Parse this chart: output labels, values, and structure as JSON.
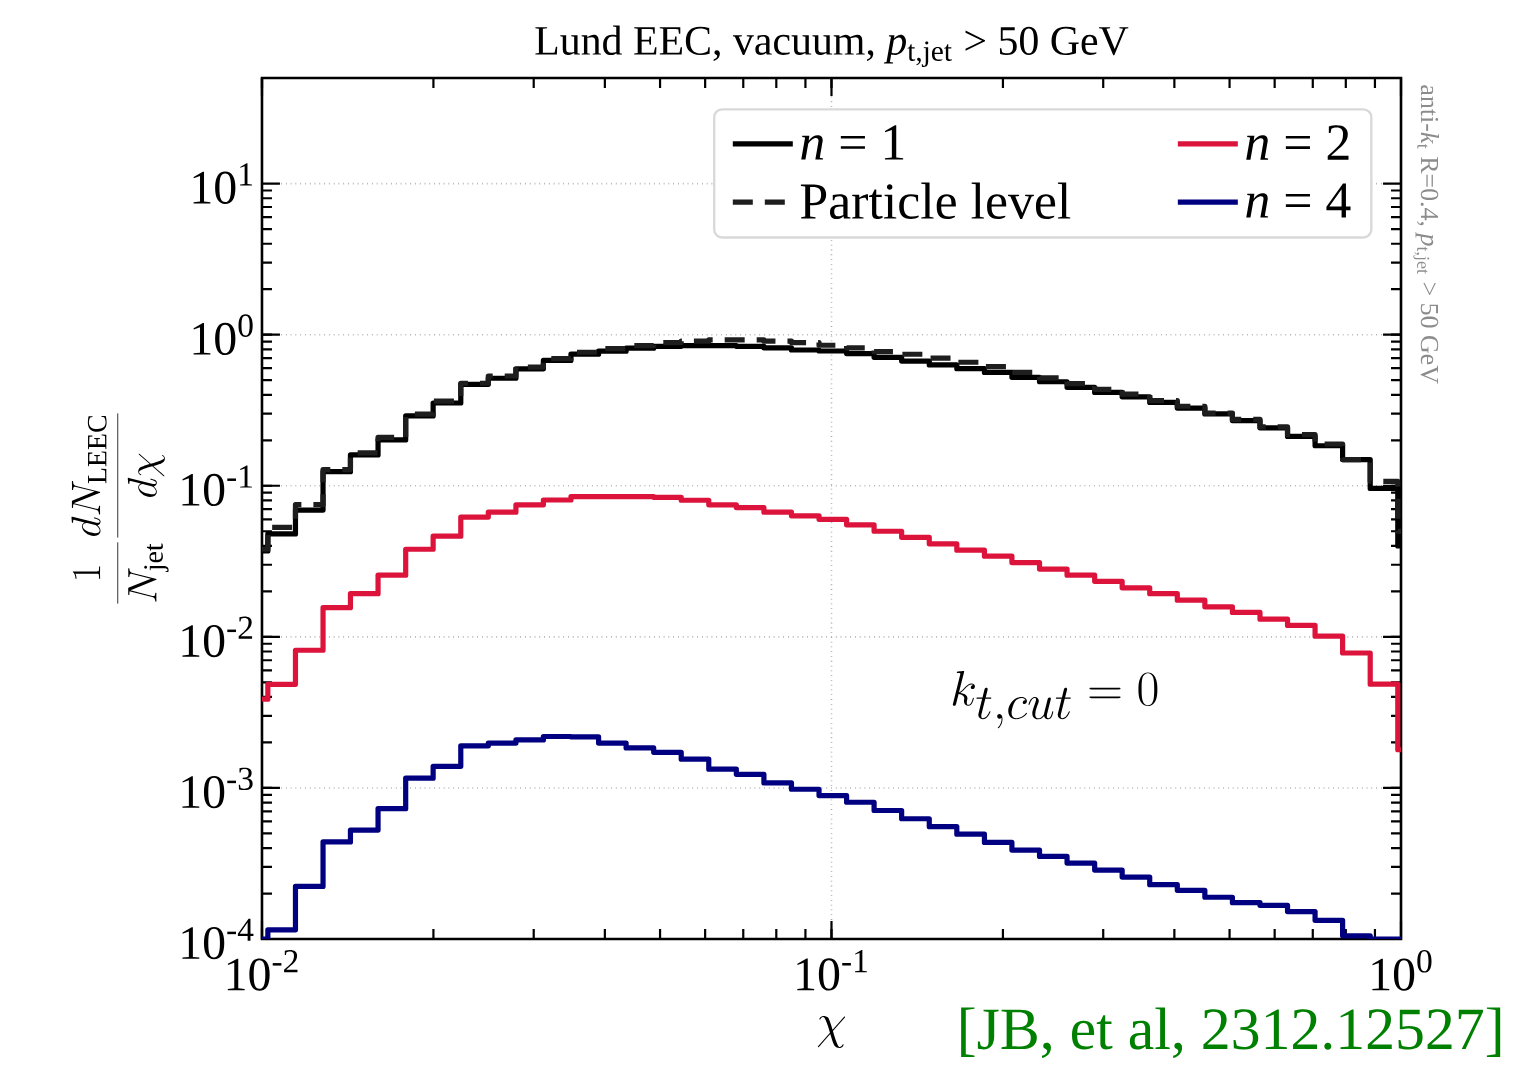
{
  "chart_data": {
    "type": "histogram",
    "title": "Lund EEC, vacuum, *p*$_{t,jet}$ > 50 GeV",
    "xlabel": "\\chi",
    "ylabel": "\\frac{1}{N_{\\rm jet}}\\frac{dN_{\\rm LEEC}}{d\\chi}",
    "bins": [
      0.01,
      0.01024,
      0.01145,
      0.0128,
      0.0143,
      0.01599,
      0.01788,
      0.01998,
      0.02234,
      0.02497,
      0.02792,
      0.0312,
      0.03488,
      0.039,
      0.04359,
      0.04873,
      0.05447,
      0.06089,
      0.06807,
      0.0761,
      0.08506,
      0.09509,
      0.1063,
      0.1188,
      0.1328,
      0.1485,
      0.166,
      0.1856,
      0.2074,
      0.2319,
      0.2592,
      0.2898,
      0.3239,
      0.3621,
      0.4048,
      0.4525,
      0.5058,
      0.5655,
      0.6321,
      0.7066,
      0.7899,
      0.883,
      0.9871,
      1
    ],
    "series": [
      {
        "name": "*n* = 1",
        "color": "#000000",
        "values": [
          0.037,
          0.048,
          0.069,
          0.124,
          0.16,
          0.201,
          0.29,
          0.353,
          0.469,
          0.515,
          0.594,
          0.676,
          0.743,
          0.778,
          0.814,
          0.838,
          0.847,
          0.847,
          0.838,
          0.819,
          0.792,
          0.78,
          0.75,
          0.708,
          0.669,
          0.631,
          0.596,
          0.563,
          0.522,
          0.488,
          0.448,
          0.415,
          0.388,
          0.356,
          0.327,
          0.299,
          0.27,
          0.242,
          0.212,
          0.184,
          0.149,
          0.096,
          0.04
        ]
      },
      {
        "name": "*n* = 2",
        "color": "#dc143c",
        "values": [
          0.00387,
          0.00485,
          0.00815,
          0.0156,
          0.0193,
          0.0256,
          0.038,
          0.0464,
          0.0621,
          0.0669,
          0.0748,
          0.0805,
          0.0848,
          0.0848,
          0.0848,
          0.0838,
          0.0802,
          0.0748,
          0.0716,
          0.0669,
          0.0632,
          0.06,
          0.0551,
          0.05,
          0.0456,
          0.0413,
          0.0375,
          0.0342,
          0.031,
          0.0281,
          0.0256,
          0.0233,
          0.0211,
          0.0193,
          0.0175,
          0.0158,
          0.0145,
          0.0131,
          0.0119,
          0.0101,
          0.00782,
          0.00486,
          0.00179
        ]
      },
      {
        "name": "Particle level",
        "color": "#1e1e1e",
        "line_style": "dashed",
        "values": [
          0.038,
          0.053,
          0.075,
          0.128,
          0.165,
          0.209,
          0.298,
          0.363,
          0.477,
          0.533,
          0.61,
          0.695,
          0.765,
          0.809,
          0.847,
          0.887,
          0.906,
          0.923,
          0.923,
          0.906,
          0.887,
          0.851,
          0.818,
          0.772,
          0.742,
          0.7,
          0.657,
          0.614,
          0.563,
          0.517,
          0.474,
          0.435,
          0.404,
          0.366,
          0.336,
          0.303,
          0.275,
          0.245,
          0.218,
          0.189,
          0.149,
          0.107,
          0.05
        ]
      },
      {
        "name": "*n* = 4",
        "color": "#000080",
        "values": [
          null,
          0.000115,
          0.000223,
          0.000439,
          0.000526,
          0.000729,
          0.00116,
          0.00139,
          0.0019,
          0.00198,
          0.00208,
          0.00219,
          0.00218,
          0.00198,
          0.00184,
          0.00172,
          0.00155,
          0.00133,
          0.00123,
          0.00108,
          0.00098,
          0.00089,
          0.000804,
          0.000709,
          0.000625,
          0.000554,
          0.000494,
          0.000436,
          0.000388,
          0.000352,
          0.000318,
          0.000286,
          0.000257,
          0.000229,
          0.00021,
          0.000189,
          0.000174,
          0.000167,
          0.000152,
          0.000133,
          0.000105,
          null,
          null
        ]
      }
    ],
    "log": "xy",
    "xlim": [
      0.01,
      1
    ],
    "ylim": [
      0.0001,
      50
    ],
    "xticks": [
      {
        "value": 0.01,
        "label": "10$^{-2}$"
      },
      {
        "value": 0.1,
        "label": "10$^{-1}$"
      },
      {
        "value": 1,
        "label": "10$^{0}$"
      }
    ],
    "yticks": [
      {
        "value": 0.0001,
        "label": "10$^{-4}$"
      },
      {
        "value": 0.001,
        "label": "10$^{-3}$"
      },
      {
        "value": 0.01,
        "label": "10$^{-2}$"
      },
      {
        "value": 0.1,
        "label": "10$^{-1}$"
      },
      {
        "value": 1,
        "label": "10$^{0}$"
      },
      {
        "value": 10,
        "label": "10$^{1}$"
      }
    ],
    "grid": true,
    "legend": "top right",
    "annotations": [
      "k_{t,cut} = 0",
      "anti-*k*$_{t}$ R=0.4, *p*$_{t,jet}$ > 50 GeV",
      "[JB, et al, 2312.12527]"
    ]
  }
}
